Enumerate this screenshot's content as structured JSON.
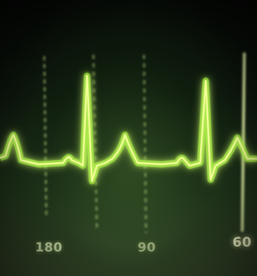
{
  "scale_labels": {
    "left": "180",
    "middle": "90",
    "right": "60"
  },
  "colors": {
    "trace": "#b7ff3c",
    "trace_core": "#f6ff9a",
    "marker": "#d8f59a"
  }
}
